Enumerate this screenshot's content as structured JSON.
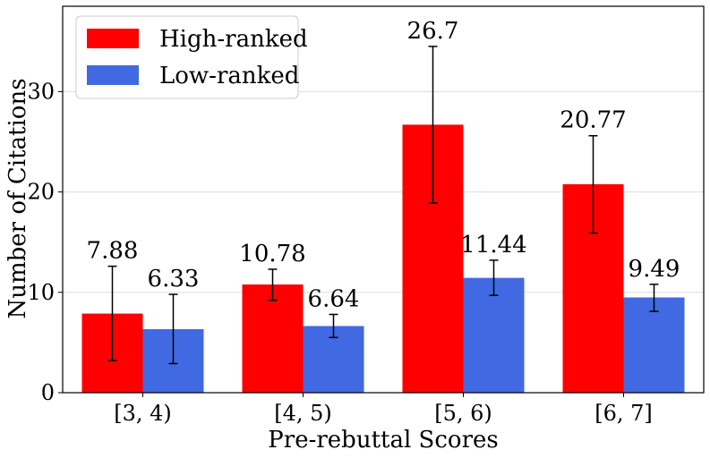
{
  "chart_data": {
    "type": "bar",
    "xlabel": "Pre-rebuttal Scores",
    "ylabel": "Number of Citations",
    "categories": [
      "[3, 4)",
      "[4, 5)",
      "[5, 6)",
      "[6, 7]"
    ],
    "series": [
      {
        "name": "High-ranked",
        "color": "#ff0000",
        "values": [
          7.88,
          10.78,
          26.7,
          20.77
        ],
        "value_labels": [
          "7.88",
          "10.78",
          "26.7",
          "20.77"
        ],
        "error_low": [
          3.2,
          9.2,
          18.9,
          15.9
        ],
        "error_high": [
          12.6,
          12.3,
          34.5,
          25.6
        ]
      },
      {
        "name": "Low-ranked",
        "color": "#4169e1",
        "values": [
          6.33,
          6.64,
          11.44,
          9.49
        ],
        "value_labels": [
          "6.33",
          "6.64",
          "11.44",
          "9.49"
        ],
        "error_low": [
          2.9,
          5.5,
          9.7,
          8.1
        ],
        "error_high": [
          9.8,
          7.8,
          13.2,
          10.8
        ]
      }
    ],
    "ylim": [
      0,
      38.5
    ],
    "yticks": [
      0,
      10,
      20,
      30
    ],
    "grid": "horizontal",
    "legend": "top-left"
  }
}
